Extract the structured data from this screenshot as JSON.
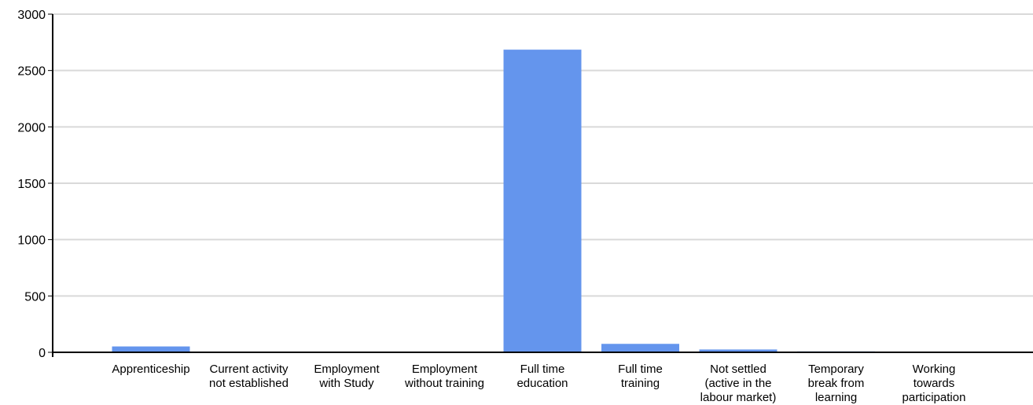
{
  "chart_data": {
    "type": "bar",
    "title": "",
    "xlabel": "",
    "ylabel": "",
    "ylim": [
      0,
      3000
    ],
    "yticks": [
      0,
      500,
      1000,
      1500,
      2000,
      2500,
      3000
    ],
    "grid": true,
    "legend": "none",
    "bar_color": "#6495ED",
    "categories": [
      [
        "Apprenticeship"
      ],
      [
        "Current activity",
        "not established"
      ],
      [
        "Employment",
        "with Study"
      ],
      [
        "Employment",
        "without training"
      ],
      [
        "Full time",
        "education"
      ],
      [
        "Full time",
        "training"
      ],
      [
        "Not settled",
        "(active in the",
        "labour market)"
      ],
      [
        "Temporary",
        "break from",
        "learning"
      ],
      [
        "Working",
        "towards",
        "participation"
      ]
    ],
    "values": [
      52,
      3,
      2,
      2,
      2685,
      75,
      25,
      8,
      2
    ]
  }
}
